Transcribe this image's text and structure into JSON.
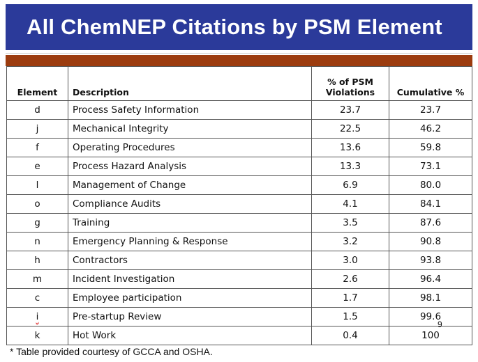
{
  "title": "All ChemNEP Citations by PSM Element",
  "table": {
    "headers": {
      "element": "Element",
      "description": "Description",
      "pct_line1": "% of PSM",
      "pct_line2": "Violations",
      "cumulative": "Cumulative %"
    },
    "rows": [
      {
        "element": "d",
        "description": "Process Safety Information",
        "pct": "23.7",
        "cumulative": "23.7"
      },
      {
        "element": "j",
        "description": "Mechanical Integrity",
        "pct": "22.5",
        "cumulative": "46.2"
      },
      {
        "element": "f",
        "description": "Operating Procedures",
        "pct": "13.6",
        "cumulative": "59.8"
      },
      {
        "element": "e",
        "description": "Process Hazard Analysis",
        "pct": "13.3",
        "cumulative": "73.1"
      },
      {
        "element": "l",
        "description": "Management of Change",
        "pct": "6.9",
        "cumulative": "80.0"
      },
      {
        "element": "o",
        "description": "Compliance Audits",
        "pct": "4.1",
        "cumulative": "84.1"
      },
      {
        "element": "g",
        "description": "Training",
        "pct": "3.5",
        "cumulative": "87.6"
      },
      {
        "element": "n",
        "description": "Emergency Planning & Response",
        "pct": "3.2",
        "cumulative": "90.8"
      },
      {
        "element": "h",
        "description": "Contractors",
        "pct": "3.0",
        "cumulative": "93.8"
      },
      {
        "element": "m",
        "description": "Incident Investigation",
        "pct": "2.6",
        "cumulative": "96.4"
      },
      {
        "element": "c",
        "description": "Employee participation",
        "pct": "1.7",
        "cumulative": "98.1"
      },
      {
        "element": "i",
        "description": "Pre-startup Review",
        "pct": "1.5",
        "cumulative": "99.6"
      },
      {
        "element": "k",
        "description": "Hot Work",
        "pct": "0.4",
        "cumulative": "100"
      }
    ]
  },
  "footnote": "* Table provided courtesy of GCCA and OSHA.",
  "page_number": "9",
  "colors": {
    "title_bar": "#2b3a9a",
    "accent_bar": "#9c3c0f"
  }
}
